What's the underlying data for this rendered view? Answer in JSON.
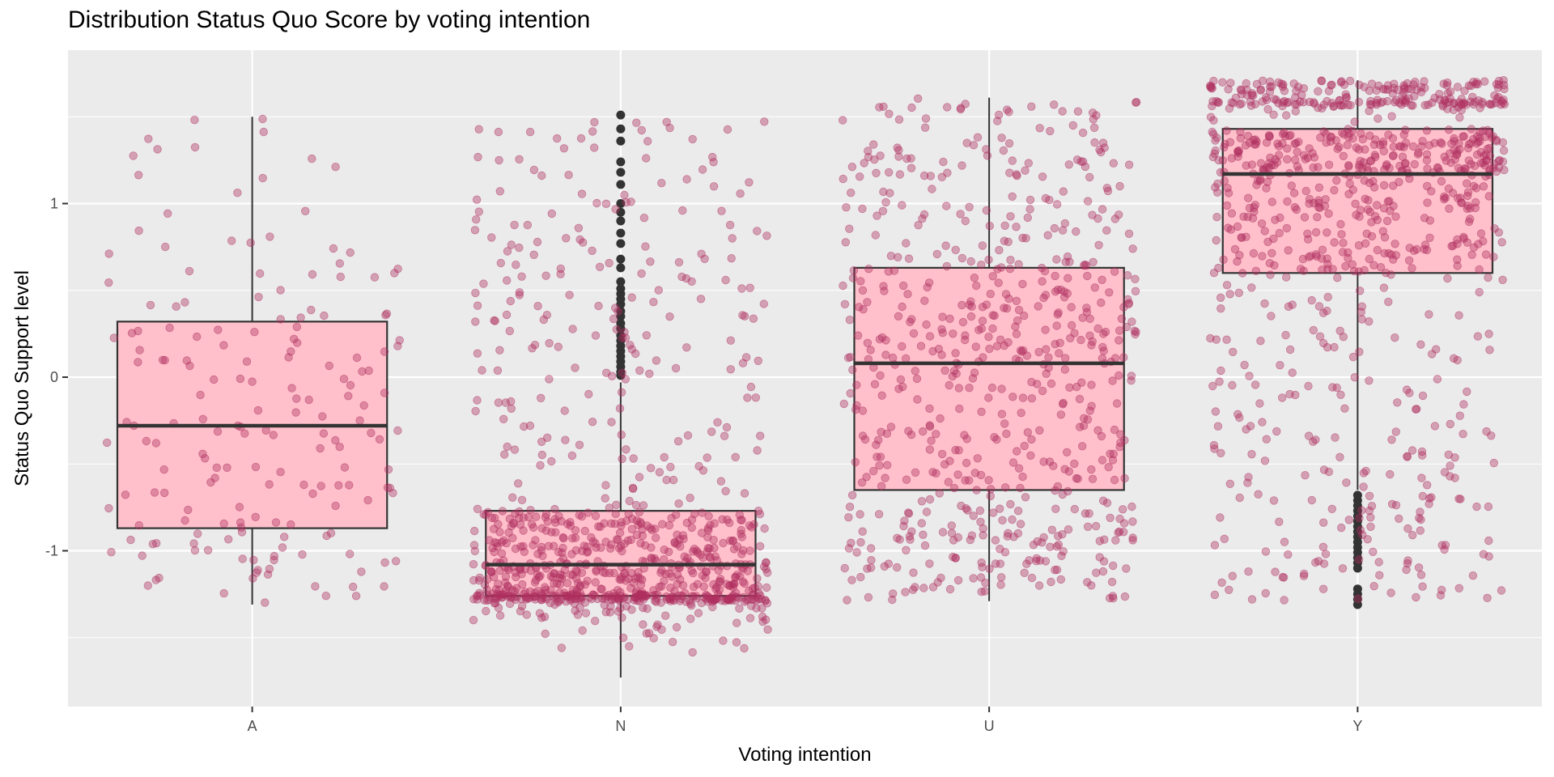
{
  "chart_data": {
    "type": "boxplot",
    "title": "Distribution Status Quo Score by voting intention",
    "xlabel": "Voting intention",
    "ylabel": "Status Quo Support level",
    "categories": [
      "A",
      "N",
      "U",
      "Y"
    ],
    "ylim": [
      -1.9,
      1.88
    ],
    "y_ticks": [
      -1,
      0,
      1
    ],
    "y_tick_labels": [
      "-1",
      "0",
      "1"
    ],
    "grid": true,
    "legend": "none",
    "overlay": "jittered points",
    "colors": {
      "panel_background": "#EBEBEB",
      "grid": "#FFFFFF",
      "box_fill": "#FFC0CB",
      "box_outline": "#333333",
      "outlier": "#333333",
      "jitter_point": "#B03060"
    },
    "series": [
      {
        "name": "A",
        "whisker_low": -1.31,
        "q1": -0.87,
        "median": -0.28,
        "q3": 0.32,
        "whisker_high": 1.5,
        "outliers": [],
        "approx_points": 180,
        "point_range": [
          -1.31,
          1.5
        ]
      },
      {
        "name": "N",
        "whisker_low": -1.73,
        "q1": -1.26,
        "median": -1.08,
        "q3": -0.77,
        "whisker_high": -0.03,
        "outliers": [
          0.01,
          0.03,
          0.06,
          0.09,
          0.12,
          0.15,
          0.18,
          0.21,
          0.24,
          0.28,
          0.31,
          0.35,
          0.38,
          0.42,
          0.45,
          0.48,
          0.51,
          0.55,
          0.63,
          0.68,
          0.77,
          0.83,
          0.9,
          0.95,
          1.0,
          1.11,
          1.18,
          1.24,
          1.36,
          1.43,
          1.51
        ],
        "approx_points": 900,
        "point_range": [
          -1.73,
          1.51
        ]
      },
      {
        "name": "U",
        "whisker_low": -1.29,
        "q1": -0.65,
        "median": 0.08,
        "q3": 0.63,
        "whisker_high": 1.61,
        "outliers": [],
        "approx_points": 650,
        "point_range": [
          -1.29,
          1.61
        ]
      },
      {
        "name": "Y",
        "whisker_low": -0.65,
        "q1": 0.6,
        "median": 1.17,
        "q3": 1.43,
        "whisker_high": 1.71,
        "outliers": [
          -0.68,
          -0.71,
          -0.74,
          -0.77,
          -0.8,
          -0.83,
          -0.86,
          -0.89,
          -0.92,
          -0.95,
          -0.98,
          -1.01,
          -1.04,
          -1.07,
          -1.1,
          -1.22,
          -1.25,
          -1.28,
          -1.31
        ],
        "approx_points": 900,
        "point_range": [
          -1.31,
          1.71
        ]
      }
    ]
  }
}
